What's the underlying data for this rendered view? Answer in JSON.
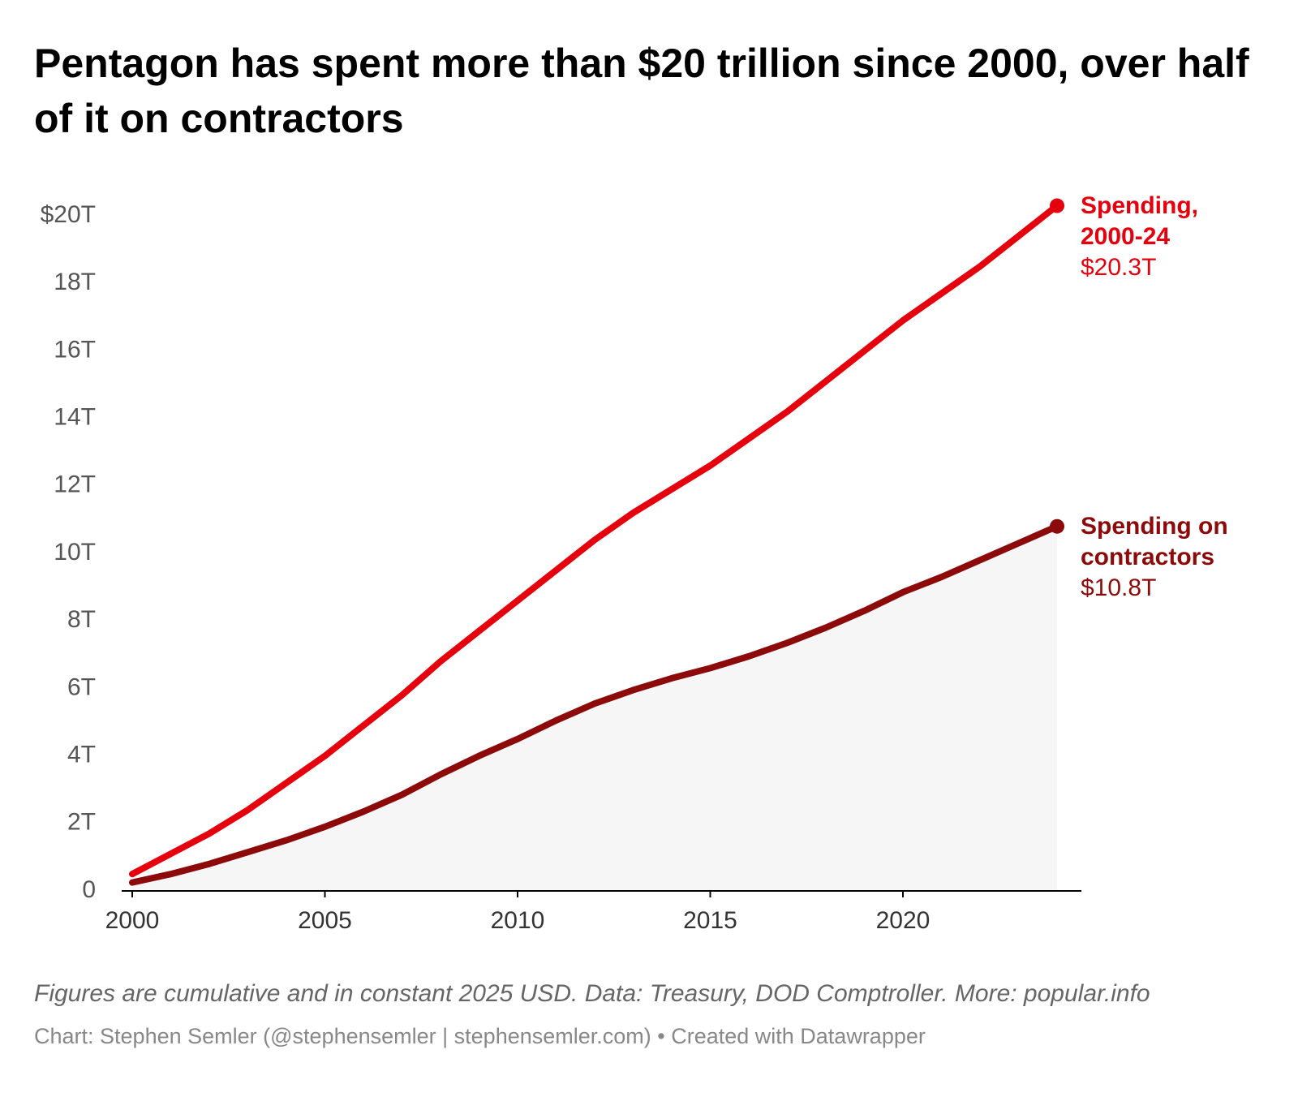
{
  "chart_data": {
    "type": "line",
    "title": "Pentagon has spent more than $20 trillion since 2000, over half of it on contractors",
    "note": "Figures are cumulative and in constant 2025 USD. Data: Treasury, DOD Comptroller. More: popular.info",
    "credit": "Chart: Stephen Semler (@stephensemler | stephensemler.com) • Created with Datawrapper",
    "x": [
      2000,
      2001,
      2002,
      2003,
      2004,
      2005,
      2006,
      2007,
      2008,
      2009,
      2010,
      2011,
      2012,
      2013,
      2014,
      2015,
      2016,
      2017,
      2018,
      2019,
      2020,
      2021,
      2022,
      2023,
      2024
    ],
    "series": [
      {
        "name": "Spending, 2000-24",
        "color": "#e5000d",
        "end_label": "$20.3T",
        "area": false,
        "values": [
          0.5,
          1.1,
          1.7,
          2.4,
          3.2,
          4.0,
          4.9,
          5.8,
          6.8,
          7.7,
          8.6,
          9.5,
          10.4,
          11.2,
          11.9,
          12.6,
          13.4,
          14.2,
          15.1,
          16.0,
          16.9,
          17.7,
          18.5,
          19.4,
          20.3
        ]
      },
      {
        "name": "Spending on contractors",
        "color": "#8c0a0a",
        "end_label": "$10.8T",
        "area": true,
        "area_color": "#f6f6f6",
        "values": [
          0.25,
          0.5,
          0.8,
          1.15,
          1.5,
          1.9,
          2.35,
          2.85,
          3.45,
          4.0,
          4.5,
          5.05,
          5.55,
          5.95,
          6.3,
          6.6,
          6.95,
          7.35,
          7.8,
          8.3,
          8.85,
          9.3,
          9.8,
          10.3,
          10.8
        ]
      }
    ],
    "xlim": [
      2000,
      2024
    ],
    "xticks": [
      2000,
      2005,
      2010,
      2015,
      2020
    ],
    "ylim": [
      0,
      20
    ],
    "yticks": [
      0,
      {
        "value": 2,
        "label": "2T"
      },
      {
        "value": 4,
        "label": "4T"
      },
      {
        "value": 6,
        "label": "6T"
      },
      {
        "value": 8,
        "label": "8T"
      },
      {
        "value": 10,
        "label": "10T"
      },
      {
        "value": 12,
        "label": "12T"
      },
      {
        "value": 14,
        "label": "14T"
      },
      {
        "value": 16,
        "label": "16T"
      },
      {
        "value": 18,
        "label": "18T"
      },
      {
        "value": 20,
        "label": "$20T"
      }
    ],
    "grid": false
  }
}
